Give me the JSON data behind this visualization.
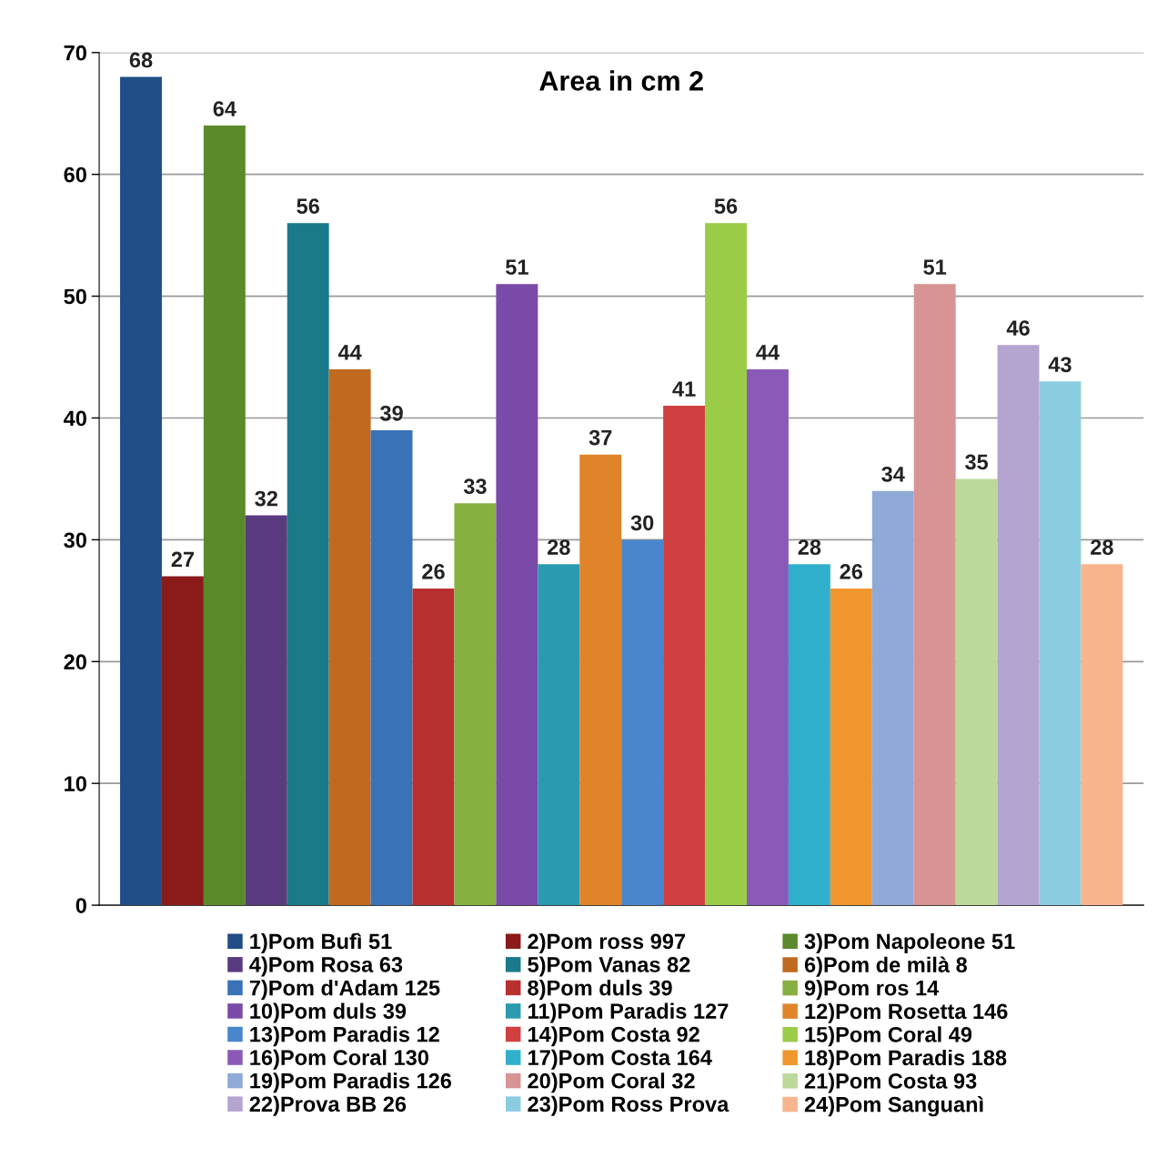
{
  "chart_data": {
    "type": "bar",
    "title": "Area in cm 2",
    "categories": [
      null
    ],
    "ylim": [
      0,
      70
    ],
    "yticks": [
      0,
      10,
      20,
      30,
      40,
      50,
      60,
      70
    ],
    "grid": "y",
    "legend": "bottom",
    "data_labels": true,
    "tick_labels": "y",
    "series": [
      {
        "name": "1)Pom Bufì 51",
        "color": "#1f4e86",
        "values": [
          68
        ]
      },
      {
        "name": "2)Pom ross 997",
        "color": "#8b1a1a",
        "values": [
          27
        ]
      },
      {
        "name": "3)Pom Napoleone 51",
        "color": "#5a8a2a",
        "values": [
          64
        ]
      },
      {
        "name": "4)Pom Rosa 63",
        "color": "#5a3a80",
        "values": [
          32
        ]
      },
      {
        "name": "5)Pom Vanas 82",
        "color": "#1a7a8a",
        "values": [
          56
        ]
      },
      {
        "name": "6)Pom de milà 8",
        "color": "#c06a20",
        "values": [
          44
        ]
      },
      {
        "name": "7)Pom d'Adam 125",
        "color": "#3a72b8",
        "values": [
          39
        ]
      },
      {
        "name": "8)Pom duls 39",
        "color": "#b83030",
        "values": [
          26
        ]
      },
      {
        "name": "9)Pom ros 14",
        "color": "#86b040",
        "values": [
          33
        ]
      },
      {
        "name": "10)Pom duls 39",
        "color": "#7a4aa8",
        "values": [
          51
        ]
      },
      {
        "name": "11)Pom Paradis 127",
        "color": "#2a9ab0",
        "values": [
          28
        ]
      },
      {
        "name": "12)Pom Rosetta 146",
        "color": "#e0842a",
        "values": [
          37
        ]
      },
      {
        "name": "13)Pom Paradis 12",
        "color": "#4a86cc",
        "values": [
          30
        ]
      },
      {
        "name": "14)Pom Costa 92",
        "color": "#d04040",
        "values": [
          41
        ]
      },
      {
        "name": "15)Pom Coral 49",
        "color": "#9acc48",
        "values": [
          56
        ]
      },
      {
        "name": "16)Pom Coral 130",
        "color": "#8a5ab8",
        "values": [
          44
        ]
      },
      {
        "name": "17)Pom Costa 164",
        "color": "#30b0cc",
        "values": [
          28
        ]
      },
      {
        "name": "18)Pom Paradis 188",
        "color": "#f0962e",
        "values": [
          26
        ]
      },
      {
        "name": "19)Pom Paradis 126",
        "color": "#90aad8",
        "values": [
          34
        ]
      },
      {
        "name": "20)Pom Coral 32",
        "color": "#d89494",
        "values": [
          51
        ]
      },
      {
        "name": "21)Pom Costa 93",
        "color": "#bcd89a",
        "values": [
          35
        ]
      },
      {
        "name": "22)Prova BB 26",
        "color": "#b4a4d0",
        "values": [
          46
        ]
      },
      {
        "name": "23)Pom Ross Prova",
        "color": "#8ccce0",
        "values": [
          43
        ]
      },
      {
        "name": "24)Pom Sanguanì",
        "color": "#f8b48c",
        "values": [
          28
        ]
      }
    ]
  }
}
